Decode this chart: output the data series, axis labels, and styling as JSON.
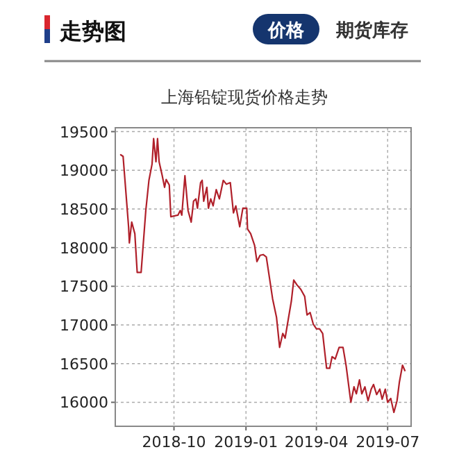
{
  "chart_data": {
    "type": "line",
    "title": "上海铅锭现货价格走势",
    "annotations": [
      "走势图",
      "价格",
      "期货库存"
    ],
    "x": [
      "2018-07-25",
      "2018-07-28",
      "2018-08-04",
      "2018-08-05",
      "2018-08-08",
      "2018-08-12",
      "2018-08-15",
      "2018-08-20",
      "2018-08-26",
      "2018-08-30",
      "2018-09-03",
      "2018-09-05",
      "2018-09-08",
      "2018-09-10",
      "2018-09-12",
      "2018-09-16",
      "2018-09-19",
      "2018-09-21",
      "2018-09-25",
      "2018-09-27",
      "2018-10-06",
      "2018-10-09",
      "2018-10-11",
      "2018-10-15",
      "2018-10-19",
      "2018-10-23",
      "2018-10-26",
      "2018-10-29",
      "2018-10-31",
      "2018-11-04",
      "2018-11-06",
      "2018-11-08",
      "2018-11-12",
      "2018-11-14",
      "2018-11-17",
      "2018-11-20",
      "2018-11-24",
      "2018-11-28",
      "2018-12-03",
      "2018-12-07",
      "2018-12-12",
      "2018-12-16",
      "2018-12-19",
      "2018-12-24",
      "2018-12-28",
      "2019-01-02",
      "2019-01-03",
      "2019-01-07",
      "2019-01-12",
      "2019-01-15",
      "2019-01-19",
      "2019-01-23",
      "2019-01-27",
      "2019-01-31",
      "2019-02-04",
      "2019-02-09",
      "2019-02-13",
      "2019-02-17",
      "2019-02-20",
      "2019-02-24",
      "2019-02-28",
      "2019-03-03",
      "2019-03-07",
      "2019-03-12",
      "2019-03-17",
      "2019-03-20",
      "2019-03-24",
      "2019-03-28",
      "2019-04-01",
      "2019-04-05",
      "2019-04-09",
      "2019-04-14",
      "2019-04-18",
      "2019-04-21",
      "2019-04-25",
      "2019-04-30",
      "2019-05-05",
      "2019-05-09",
      "2019-05-15",
      "2019-05-19",
      "2019-05-22",
      "2019-05-26",
      "2019-05-29",
      "2019-06-02",
      "2019-06-06",
      "2019-06-10",
      "2019-06-13",
      "2019-06-17",
      "2019-06-21",
      "2019-06-24",
      "2019-06-28",
      "2019-07-01",
      "2019-07-05",
      "2019-07-09",
      "2019-07-13",
      "2019-07-16",
      "2019-07-20",
      "2019-07-23"
    ],
    "values": [
      19200,
      19180,
      18270,
      18060,
      18330,
      18180,
      17680,
      17680,
      18480,
      18870,
      19080,
      19410,
      19110,
      19410,
      19110,
      18930,
      18780,
      18880,
      18810,
      18400,
      18420,
      18480,
      18420,
      18930,
      18480,
      18330,
      18600,
      18630,
      18510,
      18840,
      18870,
      18600,
      18780,
      18510,
      18630,
      18540,
      18750,
      18630,
      18870,
      18820,
      18840,
      18450,
      18540,
      18270,
      18510,
      18510,
      18240,
      18180,
      18030,
      17820,
      17900,
      17910,
      17880,
      17610,
      17340,
      17100,
      16710,
      16890,
      16830,
      17070,
      17310,
      17580,
      17520,
      17460,
      17370,
      17130,
      17160,
      17010,
      16950,
      16950,
      16890,
      16440,
      16440,
      16590,
      16560,
      16710,
      16710,
      16470,
      16000,
      16200,
      16110,
      16290,
      16110,
      16200,
      16020,
      16170,
      16230,
      16100,
      16170,
      16040,
      16170,
      16000,
      16050,
      15870,
      16020,
      16260,
      16480,
      16410
    ],
    "color": "#b0202a",
    "marker": "none",
    "line_style": "solid",
    "grid": true,
    "legend": false,
    "xlim": [
      "2018-07-18",
      "2019-07-31"
    ],
    "ylim": [
      15690,
      19550
    ],
    "xticks": [
      {
        "value": "2018-10-01",
        "label": "2018-10"
      },
      {
        "value": "2019-01-01",
        "label": "2019-01"
      },
      {
        "value": "2019-04-01",
        "label": "2019-04"
      },
      {
        "value": "2019-07-01",
        "label": "2019-07"
      }
    ],
    "yticks": [
      16000,
      16500,
      17000,
      17500,
      18000,
      18500,
      19000,
      19500
    ]
  }
}
